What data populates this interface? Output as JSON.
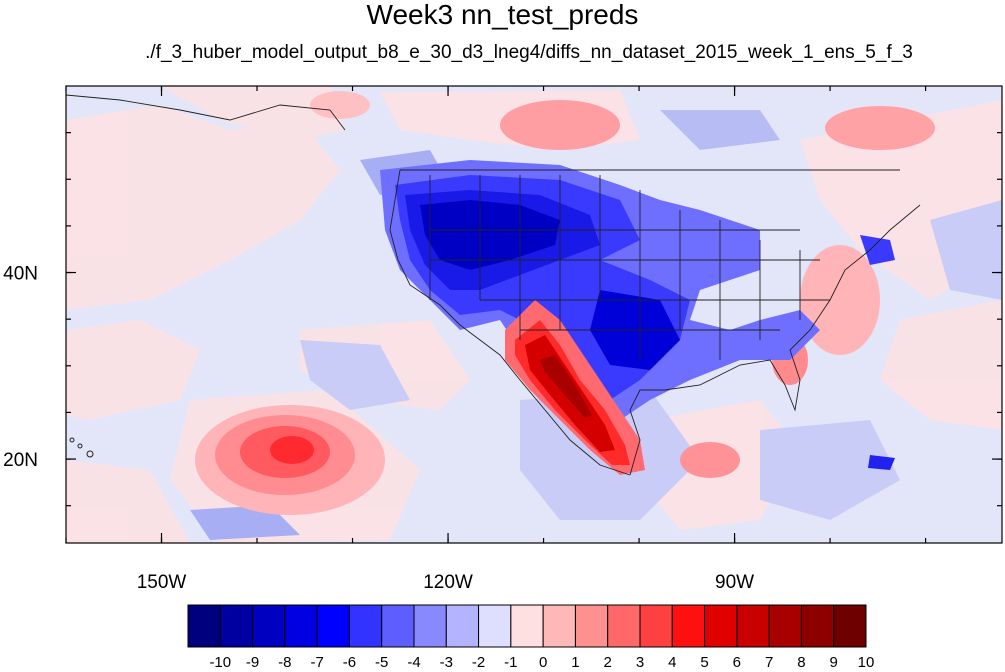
{
  "title": "Week3 nn_test_preds",
  "subtitle": "./f_3_huber_model_output_b8_e_30_d3_lneg4/diffs_nn_dataset_2015_week_1_ens_5_f_3",
  "axes": {
    "lon_range": [
      -160,
      -62
    ],
    "lat_range": [
      11,
      60
    ],
    "x_ticks": [
      {
        "lon": -150,
        "label": "150W"
      },
      {
        "lon": -120,
        "label": "120W"
      },
      {
        "lon": -90,
        "label": "90W"
      }
    ],
    "y_ticks": [
      {
        "lat": 20,
        "label": "20N"
      },
      {
        "lat": 40,
        "label": "40N"
      }
    ]
  },
  "colorbar": {
    "levels": [
      "-10",
      "-9",
      "-8",
      "-7",
      "-6",
      "-5",
      "-4",
      "-3",
      "-2",
      "-1",
      "0",
      "1",
      "2",
      "3",
      "4",
      "5",
      "6",
      "7",
      "8",
      "9",
      "10"
    ],
    "colors": [
      "#00007f",
      "#0000a0",
      "#0000c0",
      "#0000e0",
      "#0000ff",
      "#3333ff",
      "#5e5eff",
      "#8888ff",
      "#b3b3ff",
      "#dedeff",
      "#ffe0e0",
      "#ffb8b8",
      "#ff9090",
      "#ff6868",
      "#ff4040",
      "#ff1010",
      "#e00000",
      "#c80000",
      "#a80000",
      "#8c0000",
      "#6e0000"
    ]
  },
  "colors": {
    "background_field": "#e3e6f8",
    "coastline": "#222222"
  }
}
